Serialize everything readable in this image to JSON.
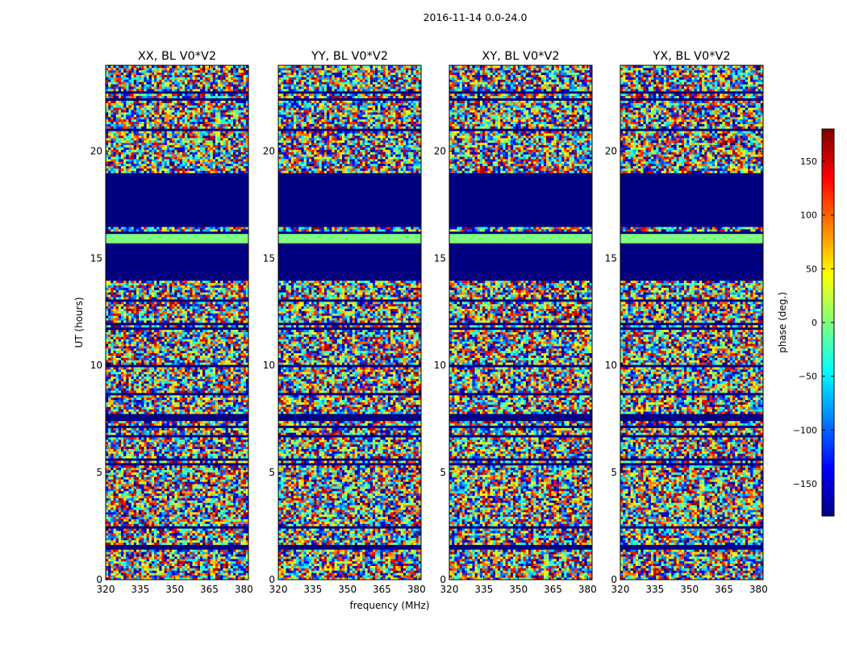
{
  "chart_data": {
    "type": "heatmap",
    "suptitle": "2016-11-14 0.0-24.0",
    "xlabel": "frequency (MHz)",
    "ylabel": "UT (hours)",
    "xlim": [
      320,
      382
    ],
    "ylim": [
      0,
      24
    ],
    "xticks": [
      320,
      335,
      350,
      365,
      380
    ],
    "yticks": [
      0,
      5,
      10,
      15,
      20
    ],
    "panels": [
      {
        "title": "XX, BL V0*V2"
      },
      {
        "title": "YY, BL V0*V2"
      },
      {
        "title": "XY, BL V0*V2"
      },
      {
        "title": "YX, BL V0*V2"
      }
    ],
    "colorbar": {
      "label": "phase (deg.)",
      "vmin": -180,
      "vmax": 180,
      "ticks": [
        -150,
        -100,
        -50,
        0,
        50,
        100,
        150
      ],
      "tick_labels": [
        "−150",
        "−100",
        "−50",
        "0",
        "50",
        "100",
        "150"
      ],
      "colormap": "jet"
    },
    "flagged_bands": [
      {
        "ut": [
          14.1,
          16.3
        ],
        "state": "flagged",
        "phase": -180
      },
      {
        "ut": [
          16.5,
          19.0
        ],
        "state": "flagged",
        "phase": -180
      },
      {
        "ut": [
          15.7,
          16.2
        ],
        "state": "constant",
        "phase": 0
      },
      {
        "ut": [
          7.4,
          7.8
        ],
        "state": "flagged",
        "phase": -180
      },
      {
        "ut": [
          1.4,
          1.6
        ],
        "state": "flagged",
        "phase": -180
      }
    ],
    "noise_phase_range": [
      -180,
      180
    ]
  }
}
